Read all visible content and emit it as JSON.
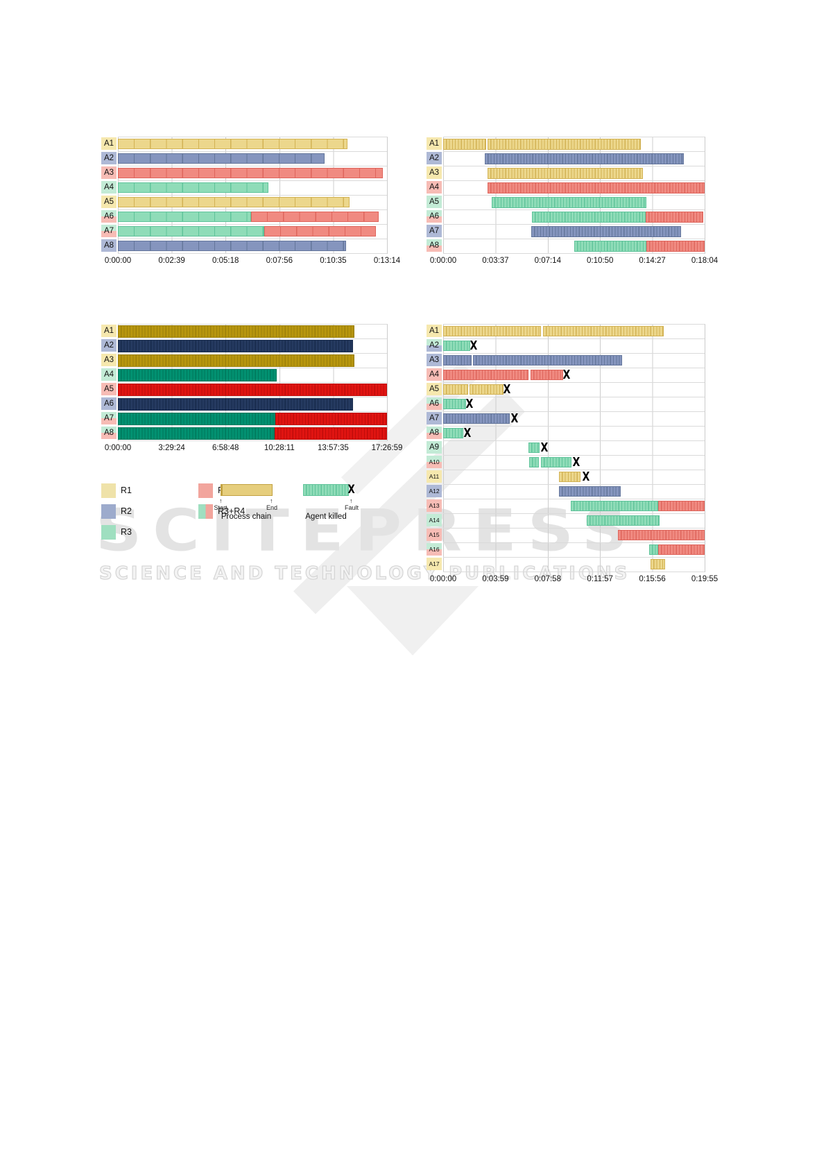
{
  "watermark": {
    "brand": "SCITEPRESS",
    "tagline": "SCIENCE AND TECHNOLOGY PUBLICATIONS"
  },
  "glyphs": {
    "fault": "X",
    "arrow_up": "↑"
  },
  "colors": {
    "chip": {
      "yellow": "#f6e8ae",
      "blue": "#aeb9d6",
      "green": "#c3ebd6",
      "pink": "#f7bcb5"
    },
    "pastel": {
      "yellow": {
        "fill": "#ecd78c",
        "stripe": "#d2b254"
      },
      "blue": {
        "fill": "#8595be",
        "stripe": "#64769b"
      },
      "green": {
        "fill": "#8fdcb8",
        "stripe": "#5fc39a"
      },
      "pink": {
        "fill": "#f08a81",
        "stripe": "#de655c"
      }
    },
    "strong": {
      "yellow": {
        "fill": "#b7960e",
        "stripe": "#9c8009"
      },
      "blue": {
        "fill": "#253a60",
        "stripe": "#172a4b"
      },
      "green": {
        "fill": "#029171",
        "stripe": "#00785b"
      },
      "pink": {
        "fill": "#e01411",
        "stripe": "#bf0c0a"
      }
    }
  },
  "legend": {
    "swatches": [
      {
        "label": "R1",
        "color": "#efe2a9"
      },
      {
        "label": "R2",
        "color": "#9dabcc"
      },
      {
        "label": "R3",
        "color": "#9fdfc0"
      },
      {
        "label": "R4",
        "color": "#f2a59d"
      },
      {
        "label": "R3+R4",
        "colors": [
          "#9fdfc0",
          "#f2a59d"
        ]
      }
    ],
    "process_chain": {
      "caption": "Process chain",
      "start_label": "Start",
      "end_label": "End",
      "bar_color": "#e6ce7d",
      "bar_border": "#c2a243"
    },
    "agent_killed": {
      "caption": "Agent killed",
      "fault_label": "Fault"
    }
  },
  "chart_data": [
    {
      "type": "gantt",
      "position": "top-left",
      "palette": "pastel",
      "texture": "sparse",
      "units": "segment start/end are fractions of the x-axis (0-1)",
      "x_axis": {
        "ticks": [
          "0:00:00",
          "0:02:39",
          "0:05:18",
          "0:07:56",
          "0:10:35",
          "0:13:14"
        ]
      },
      "rows": [
        {
          "label": "A1",
          "chip": [
            "yellow"
          ],
          "segments": [
            {
              "color": "yellow",
              "start": 0,
              "end": 0.854
            }
          ],
          "fault": null
        },
        {
          "label": "A2",
          "chip": [
            "blue"
          ],
          "segments": [
            {
              "color": "blue",
              "start": 0,
              "end": 0.768
            }
          ],
          "fault": null
        },
        {
          "label": "A3",
          "chip": [
            "pink"
          ],
          "segments": [
            {
              "color": "pink",
              "start": 0,
              "end": 0.985
            }
          ],
          "fault": null
        },
        {
          "label": "A4",
          "chip": [
            "green"
          ],
          "segments": [
            {
              "color": "green",
              "start": 0,
              "end": 0.559
            }
          ],
          "fault": null
        },
        {
          "label": "A5",
          "chip": [
            "yellow"
          ],
          "segments": [
            {
              "color": "yellow",
              "start": 0,
              "end": 0.86
            }
          ],
          "fault": null
        },
        {
          "label": "A6",
          "chip": [
            "green",
            "pink"
          ],
          "segments": [
            {
              "color": "green",
              "start": 0,
              "end": 0.494
            },
            {
              "color": "pink",
              "start": 0.494,
              "end": 0.97
            }
          ],
          "fault": null
        },
        {
          "label": "A7",
          "chip": [
            "green",
            "pink"
          ],
          "segments": [
            {
              "color": "green",
              "start": 0,
              "end": 0.545
            },
            {
              "color": "pink",
              "start": 0.545,
              "end": 0.96
            }
          ],
          "fault": null
        },
        {
          "label": "A8",
          "chip": [
            "blue"
          ],
          "segments": [
            {
              "color": "blue",
              "start": 0,
              "end": 0.848
            }
          ],
          "fault": null
        }
      ]
    },
    {
      "type": "gantt",
      "position": "top-right",
      "palette": "pastel",
      "texture": "dense",
      "units": "segment start/end are fractions of the x-axis (0-1)",
      "x_axis": {
        "ticks": [
          "0:00:00",
          "0:03:37",
          "0:07:14",
          "0:10:50",
          "0:14:27",
          "0:18:04"
        ]
      },
      "rows": [
        {
          "label": "A1",
          "chip": [
            "yellow"
          ],
          "segments": [
            {
              "color": "yellow",
              "start": 0,
              "end": 0.165
            },
            {
              "color": "yellow",
              "start": 0.171,
              "end": 0.757
            }
          ],
          "fault": null
        },
        {
          "label": "A2",
          "chip": [
            "blue"
          ],
          "segments": [
            {
              "color": "blue",
              "start": 0.159,
              "end": 0.92
            }
          ],
          "fault": null
        },
        {
          "label": "A3",
          "chip": [
            "yellow"
          ],
          "segments": [
            {
              "color": "yellow",
              "start": 0.17,
              "end": 0.763
            }
          ],
          "fault": null
        },
        {
          "label": "A4",
          "chip": [
            "pink"
          ],
          "segments": [
            {
              "color": "pink",
              "start": 0.17,
              "end": 1
            }
          ],
          "fault": null
        },
        {
          "label": "A5",
          "chip": [
            "green"
          ],
          "segments": [
            {
              "color": "green",
              "start": 0.185,
              "end": 0.777
            }
          ],
          "fault": null
        },
        {
          "label": "A6",
          "chip": [
            "green",
            "pink"
          ],
          "segments": [
            {
              "color": "green",
              "start": 0.34,
              "end": 0.775
            },
            {
              "color": "pink",
              "start": 0.775,
              "end": 0.995
            }
          ],
          "fault": null
        },
        {
          "label": "A7",
          "chip": [
            "blue"
          ],
          "segments": [
            {
              "color": "blue",
              "start": 0.336,
              "end": 0.91
            }
          ],
          "fault": null
        },
        {
          "label": "A8",
          "chip": [
            "green",
            "pink"
          ],
          "segments": [
            {
              "color": "green",
              "start": 0.5,
              "end": 0.777
            },
            {
              "color": "pink",
              "start": 0.777,
              "end": 1
            }
          ],
          "fault": null
        }
      ]
    },
    {
      "type": "gantt",
      "position": "middle-left",
      "palette": "strong",
      "texture": "dense",
      "units": "segment start/end are fractions of the x-axis (0-1)",
      "x_axis": {
        "ticks": [
          "0:00:00",
          "3:29:24",
          "6:58:48",
          "10:28:11",
          "13:57:35",
          "17:26:59"
        ]
      },
      "rows": [
        {
          "label": "A1",
          "chip": [
            "yellow"
          ],
          "segments": [
            {
              "color": "yellow",
              "start": 0,
              "end": 0.878
            }
          ],
          "fault": null
        },
        {
          "label": "A2",
          "chip": [
            "blue"
          ],
          "segments": [
            {
              "color": "blue",
              "start": 0,
              "end": 0.873
            }
          ],
          "fault": null
        },
        {
          "label": "A3",
          "chip": [
            "yellow"
          ],
          "segments": [
            {
              "color": "yellow",
              "start": 0,
              "end": 0.878
            }
          ],
          "fault": null
        },
        {
          "label": "A4",
          "chip": [
            "green"
          ],
          "segments": [
            {
              "color": "green",
              "start": 0,
              "end": 0.59
            }
          ],
          "fault": null
        },
        {
          "label": "A5",
          "chip": [
            "pink"
          ],
          "segments": [
            {
              "color": "pink",
              "start": 0,
              "end": 1
            }
          ],
          "fault": null
        },
        {
          "label": "A6",
          "chip": [
            "blue"
          ],
          "segments": [
            {
              "color": "blue",
              "start": 0,
              "end": 0.873
            }
          ],
          "fault": null
        },
        {
          "label": "A7",
          "chip": [
            "green",
            "pink"
          ],
          "segments": [
            {
              "color": "green",
              "start": 0,
              "end": 0.586
            },
            {
              "color": "pink",
              "start": 0.586,
              "end": 1
            }
          ],
          "fault": null
        },
        {
          "label": "A8",
          "chip": [
            "green",
            "pink"
          ],
          "segments": [
            {
              "color": "green",
              "start": 0,
              "end": 0.583
            },
            {
              "color": "pink",
              "start": 0.583,
              "end": 1
            }
          ],
          "fault": null
        }
      ]
    },
    {
      "type": "gantt",
      "position": "middle-right",
      "palette": "pastel",
      "texture": "dense",
      "units": "segment start/end are fractions of the x-axis (0-1); fault = X marker position",
      "x_axis": {
        "ticks": [
          "0:00:00",
          "0:03:59",
          "0:07:58",
          "0:11:57",
          "0:15:56",
          "0:19:55"
        ]
      },
      "rows": [
        {
          "label": "A1",
          "chip": [
            "yellow"
          ],
          "segments": [
            {
              "color": "yellow",
              "start": 0,
              "end": 0.375
            },
            {
              "color": "yellow",
              "start": 0.381,
              "end": 0.843
            }
          ],
          "fault": null
        },
        {
          "label": "A2",
          "chip": [
            "green",
            "blue"
          ],
          "segments": [
            {
              "color": "green",
              "start": 0,
              "end": 0.103
            }
          ],
          "fault": 0.112
        },
        {
          "label": "A3",
          "chip": [
            "blue"
          ],
          "segments": [
            {
              "color": "blue",
              "start": 0,
              "end": 0.108
            },
            {
              "color": "blue",
              "start": 0.115,
              "end": 0.685
            }
          ],
          "fault": null
        },
        {
          "label": "A4",
          "chip": [
            "pink"
          ],
          "segments": [
            {
              "color": "pink",
              "start": 0,
              "end": 0.325
            },
            {
              "color": "pink",
              "start": 0.333,
              "end": 0.459
            }
          ],
          "fault": 0.468
        },
        {
          "label": "A5",
          "chip": [
            "yellow"
          ],
          "segments": [
            {
              "color": "yellow",
              "start": 0,
              "end": 0.095
            },
            {
              "color": "yellow",
              "start": 0.102,
              "end": 0.23
            }
          ],
          "fault": 0.24
        },
        {
          "label": "A6",
          "chip": [
            "green",
            "pink"
          ],
          "segments": [
            {
              "color": "green",
              "start": 0,
              "end": 0.087
            }
          ],
          "fault": 0.096
        },
        {
          "label": "A7",
          "chip": [
            "blue"
          ],
          "segments": [
            {
              "color": "blue",
              "start": 0,
              "end": 0.255
            }
          ],
          "fault": 0.268
        },
        {
          "label": "A8",
          "chip": [
            "green",
            "pink"
          ],
          "segments": [
            {
              "color": "green",
              "start": 0,
              "end": 0.077
            }
          ],
          "fault": 0.087
        },
        {
          "label": "A9",
          "chip": [
            "green"
          ],
          "segments": [
            {
              "color": "green",
              "start": 0.327,
              "end": 0.37
            }
          ],
          "fault": 0.383
        },
        {
          "label": "A10",
          "chip": [
            "green",
            "pink"
          ],
          "segments": [
            {
              "color": "green",
              "start": 0.33,
              "end": 0.365
            },
            {
              "color": "green",
              "start": 0.375,
              "end": 0.49
            }
          ],
          "fault": 0.503
        },
        {
          "label": "A11",
          "chip": [
            "yellow"
          ],
          "segments": [
            {
              "color": "yellow",
              "start": 0.443,
              "end": 0.525
            }
          ],
          "fault": 0.54
        },
        {
          "label": "A12",
          "chip": [
            "blue"
          ],
          "segments": [
            {
              "color": "blue",
              "start": 0.443,
              "end": 0.68
            }
          ],
          "fault": null
        },
        {
          "label": "A13",
          "chip": [
            "pink"
          ],
          "segments": [
            {
              "color": "green",
              "start": 0.487,
              "end": 0.823
            },
            {
              "color": "pink",
              "start": 0.823,
              "end": 1
            }
          ],
          "fault": null
        },
        {
          "label": "A14",
          "chip": [
            "green"
          ],
          "segments": [
            {
              "color": "green",
              "start": 0.55,
              "end": 0.827
            }
          ],
          "fault": null
        },
        {
          "label": "A15",
          "chip": [
            "pink"
          ],
          "segments": [
            {
              "color": "pink",
              "start": 0.668,
              "end": 1
            }
          ],
          "fault": null
        },
        {
          "label": "A16",
          "chip": [
            "green",
            "pink"
          ],
          "segments": [
            {
              "color": "green",
              "start": 0.788,
              "end": 0.823
            },
            {
              "color": "pink",
              "start": 0.823,
              "end": 1
            }
          ],
          "fault": null
        },
        {
          "label": "A17",
          "chip": [
            "yellow"
          ],
          "segments": [
            {
              "color": "yellow",
              "start": 0.792,
              "end": 0.85
            }
          ],
          "fault": null
        }
      ]
    }
  ]
}
